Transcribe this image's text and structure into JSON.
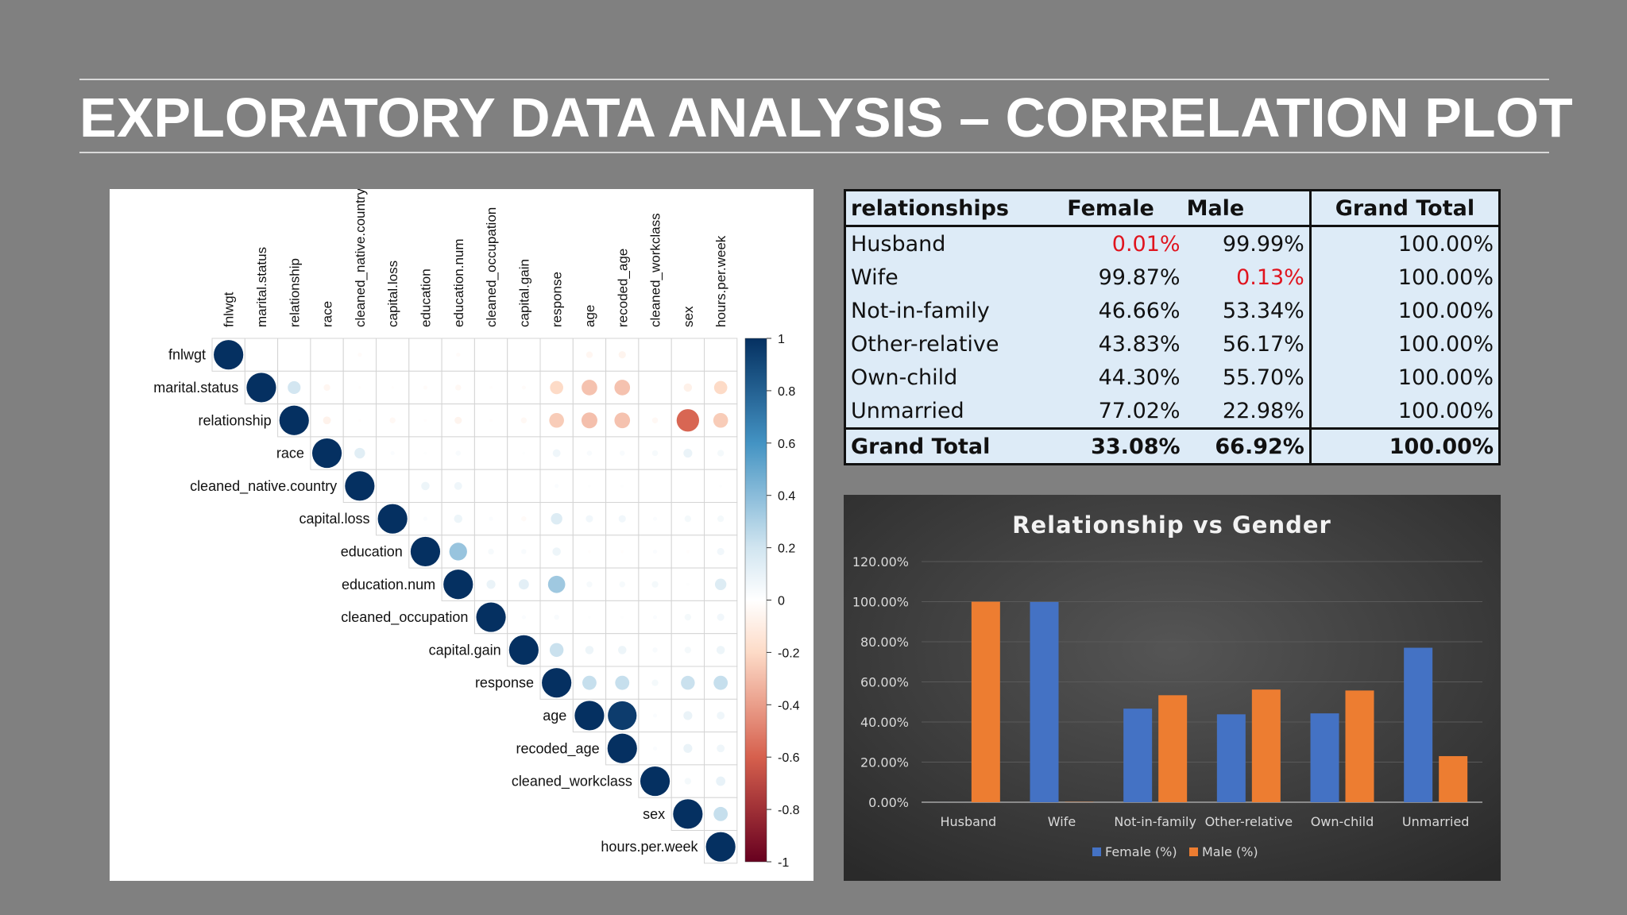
{
  "slide": {
    "title": "EXPLORATORY DATA ANALYSIS – CORRELATION PLOT"
  },
  "chart_data": [
    {
      "type": "heatmap",
      "variables_columns": [
        "fnlwgt",
        "marital.status",
        "relationship",
        "race",
        "cleaned_native.country",
        "capital.loss",
        "education",
        "education.num",
        "cleaned_occupation",
        "capital.gain",
        "response",
        "age",
        "recoded_age",
        "cleaned_workclass",
        "sex",
        "hours.per.week"
      ],
      "variables_rows": [
        "fnlwgt",
        "marital.status",
        "relationship",
        "race",
        "cleaned_native.country",
        "capital.loss",
        "education",
        "education.num",
        "cleaned_occupation",
        "capital.gain",
        "response",
        "age",
        "recoded_age",
        "cleaned_workclass",
        "sex",
        "hours.per.week"
      ],
      "colorbar_ticks": [
        1,
        0.8,
        0.6,
        0.4,
        0.2,
        0,
        -0.2,
        -0.4,
        -0.6,
        -0.8,
        -1
      ],
      "range": [
        -1,
        1
      ],
      "correlations": [
        [
          1,
          0,
          0,
          0,
          -0.02,
          0,
          0,
          -0.02,
          0,
          0,
          0,
          -0.05,
          -0.06,
          0,
          0,
          0
        ],
        [
          1,
          0.19,
          -0.05,
          -0.01,
          -0.01,
          -0.02,
          -0.04,
          -0.01,
          -0.02,
          -0.2,
          -0.28,
          -0.28,
          0,
          -0.08,
          -0.2
        ],
        [
          1,
          -0.07,
          -0.01,
          -0.04,
          -0.01,
          -0.06,
          -0.01,
          -0.04,
          -0.25,
          -0.29,
          -0.28,
          -0.04,
          -0.58,
          -0.25
        ],
        [
          1,
          0.13,
          0.02,
          0.01,
          0.03,
          0,
          0.01,
          0.07,
          0.03,
          0.03,
          0.04,
          0.09,
          0.05
        ],
        [
          1,
          0,
          0.08,
          0.07,
          0,
          0,
          0.02,
          0.01,
          0.01,
          0,
          0,
          0.01
        ],
        [
          1,
          0.02,
          0.08,
          0.02,
          -0.03,
          0.15,
          0.06,
          0.06,
          0.02,
          0.05,
          0.05
        ],
        [
          1,
          0.36,
          0.04,
          0.03,
          0.08,
          -0.01,
          -0.01,
          0.02,
          -0.01,
          0.06
        ],
        [
          1,
          0.09,
          0.12,
          0.34,
          0.04,
          0.04,
          0.05,
          0.01,
          0.15
        ],
        [
          1,
          0.02,
          0.03,
          0.01,
          0.01,
          0.02,
          0.05,
          0.06
        ],
        [
          1,
          0.22,
          0.08,
          0.08,
          0.03,
          0.05,
          0.08
        ],
        [
          1,
          0.23,
          0.23,
          0.05,
          0.22,
          0.23
        ],
        [
          1,
          0.95,
          0.02,
          0.09,
          0.07
        ],
        [
          1,
          0.02,
          0.09,
          0.07
        ],
        [
          1,
          0.05,
          0.1
        ],
        [
          1,
          0.23
        ],
        [
          1
        ]
      ]
    },
    {
      "type": "table",
      "columns": [
        "relationships",
        "Female",
        "Male",
        "Grand Total"
      ],
      "rows": [
        [
          "Husband",
          "0.01%",
          "99.99%",
          "100.00%"
        ],
        [
          "Wife",
          "99.87%",
          "0.13%",
          "100.00%"
        ],
        [
          "Not-in-family",
          "46.66%",
          "53.34%",
          "100.00%"
        ],
        [
          "Other-relative",
          "43.83%",
          "56.17%",
          "100.00%"
        ],
        [
          "Own-child",
          "44.30%",
          "55.70%",
          "100.00%"
        ],
        [
          "Unmarried",
          "77.02%",
          "22.98%",
          "100.00%"
        ]
      ],
      "total_row": [
        "Grand Total",
        "33.08%",
        "66.92%",
        "100.00%"
      ],
      "highlight_color": "#e0141e"
    },
    {
      "type": "bar",
      "title": "Relationship vs Gender",
      "categories": [
        "Husband",
        "Wife",
        "Not-in-family",
        "Other-relative",
        "Own-child",
        "Unmarried"
      ],
      "series": [
        {
          "name": "Female (%)",
          "values": [
            0.01,
            99.87,
            46.66,
            43.83,
            44.3,
            77.02
          ],
          "color": "#4472c4"
        },
        {
          "name": "Male (%)",
          "values": [
            99.99,
            0.13,
            53.34,
            56.17,
            55.7,
            22.98
          ],
          "color": "#ed7d31"
        }
      ],
      "ylim": [
        0,
        120
      ],
      "yticks": [
        "0.00%",
        "20.00%",
        "40.00%",
        "60.00%",
        "80.00%",
        "100.00%",
        "120.00%"
      ],
      "legend_position": "bottom",
      "grid": true
    }
  ]
}
